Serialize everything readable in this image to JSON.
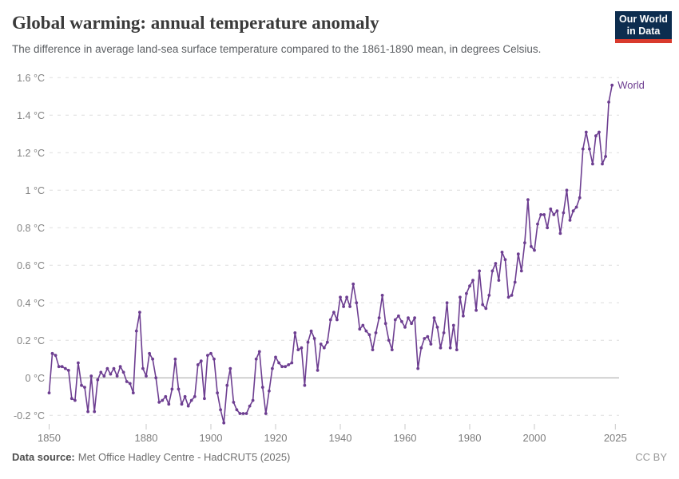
{
  "header": {
    "title": "Global warming: annual temperature anomaly",
    "subtitle": "The difference in average land-sea surface temperature compared to the 1861-1890 mean, in degrees Celsius.",
    "logo": {
      "line1": "Our World",
      "line2": "in Data"
    }
  },
  "footer": {
    "source_label": "Data source:",
    "source_value": "Met Office Hadley Centre - HadCRUT5 (2025)",
    "license": "CC BY"
  },
  "colors": {
    "series_line": "#6d3e91",
    "gridline": "#dedede",
    "zero_line": "#a3a3a3",
    "axis_text": "#828282",
    "title_text": "#3a3a3a",
    "logo_bg": "#0d2d4f",
    "logo_accent": "#d93a2d"
  },
  "chart_data": {
    "type": "line",
    "title": "Global warming: annual temperature anomaly",
    "subtitle": "The difference in average land-sea surface temperature compared to the 1861-1890 mean, in degrees Celsius.",
    "xlabel": "",
    "ylabel": "",
    "xlim": [
      1850,
      2025
    ],
    "ylim": [
      -0.28,
      1.65
    ],
    "grid": "horizontal-dashed",
    "zero_line": true,
    "legend_position": "end-of-line-label",
    "x_ticks": [
      1850,
      1880,
      1900,
      1920,
      1940,
      1960,
      1980,
      2000,
      2025
    ],
    "y_ticks": [
      -0.2,
      0,
      0.2,
      0.4,
      0.6,
      0.8,
      1,
      1.2,
      1.4,
      1.6
    ],
    "y_tick_labels": [
      "-0.2 °C",
      "0 °C",
      "0.2 °C",
      "0.4 °C",
      "0.6 °C",
      "0.8 °C",
      "1 °C",
      "1.2 °C",
      "1.4 °C",
      "1.6 °C"
    ],
    "series": [
      {
        "name": "World",
        "color": "#6d3e91",
        "x": [
          1850,
          1851,
          1852,
          1853,
          1854,
          1855,
          1856,
          1857,
          1858,
          1859,
          1860,
          1861,
          1862,
          1863,
          1864,
          1865,
          1866,
          1867,
          1868,
          1869,
          1870,
          1871,
          1872,
          1873,
          1874,
          1875,
          1876,
          1877,
          1878,
          1879,
          1880,
          1881,
          1882,
          1883,
          1884,
          1885,
          1886,
          1887,
          1888,
          1889,
          1890,
          1891,
          1892,
          1893,
          1894,
          1895,
          1896,
          1897,
          1898,
          1899,
          1900,
          1901,
          1902,
          1903,
          1904,
          1905,
          1906,
          1907,
          1908,
          1909,
          1910,
          1911,
          1912,
          1913,
          1914,
          1915,
          1916,
          1917,
          1918,
          1919,
          1920,
          1921,
          1922,
          1923,
          1924,
          1925,
          1926,
          1927,
          1928,
          1929,
          1930,
          1931,
          1932,
          1933,
          1934,
          1935,
          1936,
          1937,
          1938,
          1939,
          1940,
          1941,
          1942,
          1943,
          1944,
          1945,
          1946,
          1947,
          1948,
          1949,
          1950,
          1951,
          1952,
          1953,
          1954,
          1955,
          1956,
          1957,
          1958,
          1959,
          1960,
          1961,
          1962,
          1963,
          1964,
          1965,
          1966,
          1967,
          1968,
          1969,
          1970,
          1971,
          1972,
          1973,
          1974,
          1975,
          1976,
          1977,
          1978,
          1979,
          1980,
          1981,
          1982,
          1983,
          1984,
          1985,
          1986,
          1987,
          1988,
          1989,
          1990,
          1991,
          1992,
          1993,
          1994,
          1995,
          1996,
          1997,
          1998,
          1999,
          2000,
          2001,
          2002,
          2003,
          2004,
          2005,
          2006,
          2007,
          2008,
          2009,
          2010,
          2011,
          2012,
          2013,
          2014,
          2015,
          2016,
          2017,
          2018,
          2019,
          2020,
          2021,
          2022,
          2023,
          2024
        ],
        "values": [
          -0.08,
          0.13,
          0.12,
          0.06,
          0.06,
          0.05,
          0.04,
          -0.11,
          -0.12,
          0.08,
          -0.04,
          -0.05,
          -0.18,
          0.01,
          -0.18,
          -0.01,
          0.03,
          0.01,
          0.05,
          0.02,
          0.05,
          0.01,
          0.06,
          0.03,
          -0.02,
          -0.03,
          -0.08,
          0.25,
          0.35,
          0.05,
          0.01,
          0.13,
          0.1,
          0.0,
          -0.13,
          -0.12,
          -0.1,
          -0.14,
          -0.06,
          0.1,
          -0.06,
          -0.14,
          -0.1,
          -0.15,
          -0.12,
          -0.1,
          0.07,
          0.09,
          -0.11,
          0.12,
          0.13,
          0.1,
          -0.08,
          -0.17,
          -0.24,
          -0.04,
          0.05,
          -0.13,
          -0.17,
          -0.19,
          -0.19,
          -0.19,
          -0.15,
          -0.12,
          0.1,
          0.14,
          -0.05,
          -0.19,
          -0.07,
          0.05,
          0.11,
          0.08,
          0.06,
          0.06,
          0.07,
          0.08,
          0.24,
          0.15,
          0.16,
          -0.04,
          0.19,
          0.25,
          0.21,
          0.04,
          0.18,
          0.16,
          0.19,
          0.31,
          0.35,
          0.31,
          0.43,
          0.38,
          0.43,
          0.38,
          0.5,
          0.4,
          0.26,
          0.28,
          0.25,
          0.23,
          0.15,
          0.24,
          0.32,
          0.44,
          0.29,
          0.2,
          0.15,
          0.31,
          0.33,
          0.3,
          0.27,
          0.32,
          0.29,
          0.32,
          0.05,
          0.16,
          0.21,
          0.22,
          0.18,
          0.32,
          0.27,
          0.16,
          0.24,
          0.4,
          0.16,
          0.28,
          0.15,
          0.43,
          0.33,
          0.45,
          0.49,
          0.52,
          0.36,
          0.57,
          0.39,
          0.37,
          0.44,
          0.57,
          0.61,
          0.52,
          0.67,
          0.63,
          0.43,
          0.44,
          0.51,
          0.66,
          0.57,
          0.72,
          0.95,
          0.7,
          0.68,
          0.82,
          0.87,
          0.87,
          0.8,
          0.9,
          0.87,
          0.89,
          0.77,
          0.88,
          1.0,
          0.84,
          0.89,
          0.91,
          0.96,
          1.22,
          1.31,
          1.22,
          1.14,
          1.29,
          1.31,
          1.14,
          1.18,
          1.47,
          1.56
        ]
      }
    ]
  }
}
